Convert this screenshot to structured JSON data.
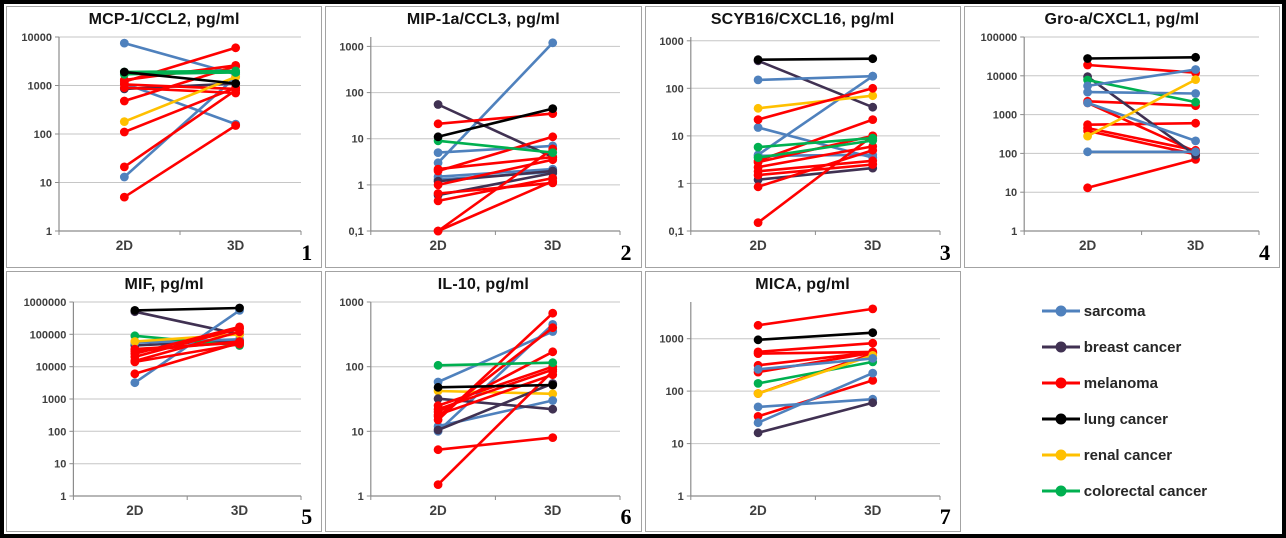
{
  "figure": {
    "background": "#ffffff",
    "border_color": "#000000",
    "x_axis_conditions": [
      "2D",
      "3D"
    ]
  },
  "legend": {
    "items": [
      {
        "key": "sarcoma",
        "label": "sarcoma",
        "color": "#4F81BD"
      },
      {
        "key": "breast",
        "label": "breast cancer",
        "color": "#403152"
      },
      {
        "key": "melanoma",
        "label": "melanoma",
        "color": "#FF0000"
      },
      {
        "key": "lung",
        "label": "lung cancer",
        "color": "#000000"
      },
      {
        "key": "renal",
        "label": "renal cancer",
        "color": "#FFC000"
      },
      {
        "key": "colorectal",
        "label": "colorectal cancer",
        "color": "#00B050"
      }
    ]
  },
  "chart_data": [
    {
      "type": "line",
      "panel_number": "1",
      "title": "MCP-1/CCL2, pg/ml",
      "x_categories": [
        "2D",
        "3D"
      ],
      "y_scale": "log10",
      "ylim": [
        1,
        10000
      ],
      "y_ticks": [
        {
          "label": "10000",
          "value": 10000
        },
        {
          "label": "1000",
          "value": 1000
        },
        {
          "label": "100",
          "value": 100
        },
        {
          "label": "10",
          "value": 10
        },
        {
          "label": "1",
          "value": 1
        }
      ],
      "series": [
        {
          "group": "sarcoma",
          "values": [
            7500,
            1700
          ]
        },
        {
          "group": "sarcoma",
          "values": [
            13,
            1500
          ]
        },
        {
          "group": "sarcoma",
          "values": [
            1100,
            160
          ]
        },
        {
          "group": "breast",
          "values": [
            850,
            1100
          ]
        },
        {
          "group": "melanoma",
          "values": [
            5,
            150
          ]
        },
        {
          "group": "melanoma",
          "values": [
            21,
            800
          ]
        },
        {
          "group": "melanoma",
          "values": [
            110,
            900
          ]
        },
        {
          "group": "melanoma",
          "values": [
            480,
            2500
          ]
        },
        {
          "group": "melanoma",
          "values": [
            1200,
            6000
          ]
        },
        {
          "group": "melanoma",
          "values": [
            1300,
            2600
          ]
        },
        {
          "group": "melanoma",
          "values": [
            900,
            700
          ]
        },
        {
          "group": "melanoma",
          "values": [
            1050,
            850
          ]
        },
        {
          "group": "renal",
          "values": [
            180,
            1500
          ]
        },
        {
          "group": "colorectal",
          "values": [
            1900,
            2000
          ]
        },
        {
          "group": "colorectal",
          "values": [
            1700,
            1850
          ]
        },
        {
          "group": "lung",
          "values": [
            1900,
            1100
          ]
        }
      ]
    },
    {
      "type": "line",
      "panel_number": "2",
      "title": "MIP-1a/CCL3, pg/ml",
      "x_categories": [
        "2D",
        "3D"
      ],
      "y_scale": "log10",
      "ylim": [
        0.1,
        1600
      ],
      "y_ticks": [
        {
          "label": "1000",
          "value": 1000
        },
        {
          "label": "100",
          "value": 100
        },
        {
          "label": "10",
          "value": 10
        },
        {
          "label": "1",
          "value": 1
        },
        {
          "label": "0,1",
          "value": 0.1
        }
      ],
      "series": [
        {
          "group": "sarcoma",
          "values": [
            3,
            1200
          ]
        },
        {
          "group": "sarcoma",
          "values": [
            5,
            7
          ]
        },
        {
          "group": "sarcoma",
          "values": [
            1.5,
            2.2
          ]
        },
        {
          "group": "sarcoma",
          "values": [
            1.3,
            1.9
          ]
        },
        {
          "group": "breast",
          "values": [
            55,
            4
          ]
        },
        {
          "group": "breast",
          "values": [
            0.6,
            1.8
          ]
        },
        {
          "group": "breast",
          "values": [
            1.2,
            2
          ]
        },
        {
          "group": "melanoma",
          "values": [
            21,
            35
          ]
        },
        {
          "group": "melanoma",
          "values": [
            2,
            11
          ]
        },
        {
          "group": "melanoma",
          "values": [
            0.1,
            6
          ]
        },
        {
          "group": "melanoma",
          "values": [
            0.1,
            1.2
          ]
        },
        {
          "group": "melanoma",
          "values": [
            1,
            3.5
          ]
        },
        {
          "group": "melanoma",
          "values": [
            0.65,
            1.1
          ]
        },
        {
          "group": "melanoma",
          "values": [
            2.2,
            4
          ]
        },
        {
          "group": "melanoma",
          "values": [
            0.45,
            1.4
          ]
        },
        {
          "group": "colorectal",
          "values": [
            9,
            5
          ]
        },
        {
          "group": "lung",
          "values": [
            11,
            45
          ]
        }
      ]
    },
    {
      "type": "line",
      "panel_number": "3",
      "title": "SCYB16/CXCL16, pg/ml",
      "x_categories": [
        "2D",
        "3D"
      ],
      "y_scale": "log10",
      "ylim": [
        0.1,
        1200
      ],
      "y_ticks": [
        {
          "label": "1000",
          "value": 1000
        },
        {
          "label": "100",
          "value": 100
        },
        {
          "label": "10",
          "value": 10
        },
        {
          "label": "1",
          "value": 1
        },
        {
          "label": "0,1",
          "value": 0.1
        }
      ],
      "series": [
        {
          "group": "breast",
          "values": [
            380,
            40
          ]
        },
        {
          "group": "breast",
          "values": [
            1.2,
            2.1
          ]
        },
        {
          "group": "sarcoma",
          "values": [
            150,
            180
          ]
        },
        {
          "group": "sarcoma",
          "values": [
            15,
            3.5
          ]
        },
        {
          "group": "sarcoma",
          "values": [
            4,
            180
          ]
        },
        {
          "group": "sarcoma",
          "values": [
            3.8,
            4
          ]
        },
        {
          "group": "renal",
          "values": [
            38,
            70
          ]
        },
        {
          "group": "melanoma",
          "values": [
            22,
            100
          ]
        },
        {
          "group": "melanoma",
          "values": [
            3,
            22
          ]
        },
        {
          "group": "melanoma",
          "values": [
            0.15,
            10
          ]
        },
        {
          "group": "melanoma",
          "values": [
            0.85,
            5
          ]
        },
        {
          "group": "melanoma",
          "values": [
            1.8,
            3
          ]
        },
        {
          "group": "melanoma",
          "values": [
            2.8,
            10
          ]
        },
        {
          "group": "melanoma",
          "values": [
            1.5,
            2.5
          ]
        },
        {
          "group": "melanoma",
          "values": [
            2.2,
            6
          ]
        },
        {
          "group": "colorectal",
          "values": [
            5.8,
            9
          ]
        },
        {
          "group": "colorectal",
          "values": [
            3.5,
            8
          ]
        },
        {
          "group": "lung",
          "values": [
            400,
            420
          ]
        }
      ]
    },
    {
      "type": "line",
      "panel_number": "4",
      "title": "Gro-a/CXCL1, pg/ml",
      "x_categories": [
        "2D",
        "3D"
      ],
      "y_scale": "log10",
      "ylim": [
        1,
        100000
      ],
      "y_ticks": [
        {
          "label": "100000",
          "value": 100000
        },
        {
          "label": "10000",
          "value": 10000
        },
        {
          "label": "1000",
          "value": 1000
        },
        {
          "label": "100",
          "value": 100
        },
        {
          "label": "10",
          "value": 10
        },
        {
          "label": "1",
          "value": 1
        }
      ],
      "series": [
        {
          "group": "melanoma",
          "values": [
            19000,
            12000
          ]
        },
        {
          "group": "melanoma",
          "values": [
            2200,
            1700
          ]
        },
        {
          "group": "melanoma",
          "values": [
            2000,
            110
          ]
        },
        {
          "group": "melanoma",
          "values": [
            550,
            600
          ]
        },
        {
          "group": "melanoma",
          "values": [
            450,
            120
          ]
        },
        {
          "group": "melanoma",
          "values": [
            380,
            95
          ]
        },
        {
          "group": "melanoma",
          "values": [
            13,
            70
          ]
        },
        {
          "group": "breast",
          "values": [
            9500,
            90
          ]
        },
        {
          "group": "colorectal",
          "values": [
            7800,
            2100
          ]
        },
        {
          "group": "sarcoma",
          "values": [
            5500,
            14500
          ]
        },
        {
          "group": "sarcoma",
          "values": [
            3800,
            3500
          ]
        },
        {
          "group": "sarcoma",
          "values": [
            2000,
            210
          ]
        },
        {
          "group": "sarcoma",
          "values": [
            110,
            110
          ]
        },
        {
          "group": "renal",
          "values": [
            280,
            8000
          ]
        },
        {
          "group": "lung",
          "values": [
            28000,
            30000
          ]
        }
      ]
    },
    {
      "type": "line",
      "panel_number": "5",
      "title": "MIF, pg/ml",
      "x_categories": [
        "2D",
        "3D"
      ],
      "y_scale": "log10",
      "ylim": [
        1,
        1000000
      ],
      "y_ticks": [
        {
          "label": "1000000",
          "value": 1000000
        },
        {
          "label": "100000",
          "value": 100000
        },
        {
          "label": "10000",
          "value": 10000
        },
        {
          "label": "1000",
          "value": 1000
        },
        {
          "label": "100",
          "value": 100
        },
        {
          "label": "10",
          "value": 10
        },
        {
          "label": "1",
          "value": 1
        }
      ],
      "series": [
        {
          "group": "breast",
          "values": [
            500000,
            100000
          ]
        },
        {
          "group": "breast",
          "values": [
            45000,
            65000
          ]
        },
        {
          "group": "sarcoma",
          "values": [
            3200,
            550000
          ]
        },
        {
          "group": "sarcoma",
          "values": [
            55000,
            70000
          ]
        },
        {
          "group": "colorectal",
          "values": [
            90000,
            45000
          ]
        },
        {
          "group": "renal",
          "values": [
            60000,
            100000
          ]
        },
        {
          "group": "melanoma",
          "values": [
            6000,
            55000
          ]
        },
        {
          "group": "melanoma",
          "values": [
            15000,
            120000
          ]
        },
        {
          "group": "melanoma",
          "values": [
            20000,
            150000
          ]
        },
        {
          "group": "melanoma",
          "values": [
            25000,
            170000
          ]
        },
        {
          "group": "melanoma",
          "values": [
            30000,
            60000
          ]
        },
        {
          "group": "melanoma",
          "values": [
            35000,
            55000
          ]
        },
        {
          "group": "melanoma",
          "values": [
            14000,
            50000
          ]
        },
        {
          "group": "lung",
          "values": [
            550000,
            650000
          ]
        }
      ]
    },
    {
      "type": "line",
      "panel_number": "6",
      "title": "IL-10, pg/ml",
      "x_categories": [
        "2D",
        "3D"
      ],
      "y_scale": "log10",
      "ylim": [
        1,
        1000
      ],
      "y_ticks": [
        {
          "label": "1000",
          "value": 1000
        },
        {
          "label": "100",
          "value": 100
        },
        {
          "label": "10",
          "value": 10
        },
        {
          "label": "1",
          "value": 1
        }
      ],
      "series": [
        {
          "group": "renal",
          "values": [
            42,
            38
          ]
        },
        {
          "group": "sarcoma",
          "values": [
            58,
            350
          ]
        },
        {
          "group": "sarcoma",
          "values": [
            10,
            450
          ]
        },
        {
          "group": "sarcoma",
          "values": [
            12,
            30
          ]
        },
        {
          "group": "breast",
          "values": [
            32,
            22
          ]
        },
        {
          "group": "breast",
          "values": [
            10.5,
            55
          ]
        },
        {
          "group": "melanoma",
          "values": [
            1.5,
            85
          ]
        },
        {
          "group": "melanoma",
          "values": [
            5.2,
            8
          ]
        },
        {
          "group": "melanoma",
          "values": [
            15,
            670
          ]
        },
        {
          "group": "melanoma",
          "values": [
            17,
            400
          ]
        },
        {
          "group": "melanoma",
          "values": [
            20,
            170
          ]
        },
        {
          "group": "melanoma",
          "values": [
            22,
            90
          ]
        },
        {
          "group": "melanoma",
          "values": [
            25,
            100
          ]
        },
        {
          "group": "melanoma",
          "values": [
            18,
            75
          ]
        },
        {
          "group": "colorectal",
          "values": [
            105,
            115
          ]
        },
        {
          "group": "lung",
          "values": [
            48,
            52
          ]
        }
      ]
    },
    {
      "type": "line",
      "panel_number": "7",
      "title": "MICA, pg/ml",
      "x_categories": [
        "2D",
        "3D"
      ],
      "y_scale": "log10",
      "ylim": [
        1,
        5000
      ],
      "y_ticks": [
        {
          "label": "1000",
          "value": 1000
        },
        {
          "label": "100",
          "value": 100
        },
        {
          "label": "10",
          "value": 10
        },
        {
          "label": "1",
          "value": 1
        }
      ],
      "series": [
        {
          "group": "melanoma",
          "values": [
            1800,
            3700
          ]
        },
        {
          "group": "melanoma",
          "values": [
            560,
            820
          ]
        },
        {
          "group": "melanoma",
          "values": [
            520,
            560
          ]
        },
        {
          "group": "melanoma",
          "values": [
            310,
            550
          ]
        },
        {
          "group": "melanoma",
          "values": [
            230,
            540
          ]
        },
        {
          "group": "melanoma",
          "values": [
            90,
            520
          ]
        },
        {
          "group": "melanoma",
          "values": [
            33,
            160
          ]
        },
        {
          "group": "colorectal",
          "values": [
            140,
            360
          ]
        },
        {
          "group": "renal",
          "values": [
            90,
            480
          ]
        },
        {
          "group": "sarcoma",
          "values": [
            260,
            420
          ]
        },
        {
          "group": "sarcoma",
          "values": [
            50,
            70
          ]
        },
        {
          "group": "sarcoma",
          "values": [
            25,
            220
          ]
        },
        {
          "group": "breast",
          "values": [
            16,
            60
          ]
        },
        {
          "group": "lung",
          "values": [
            950,
            1300
          ]
        }
      ]
    }
  ]
}
